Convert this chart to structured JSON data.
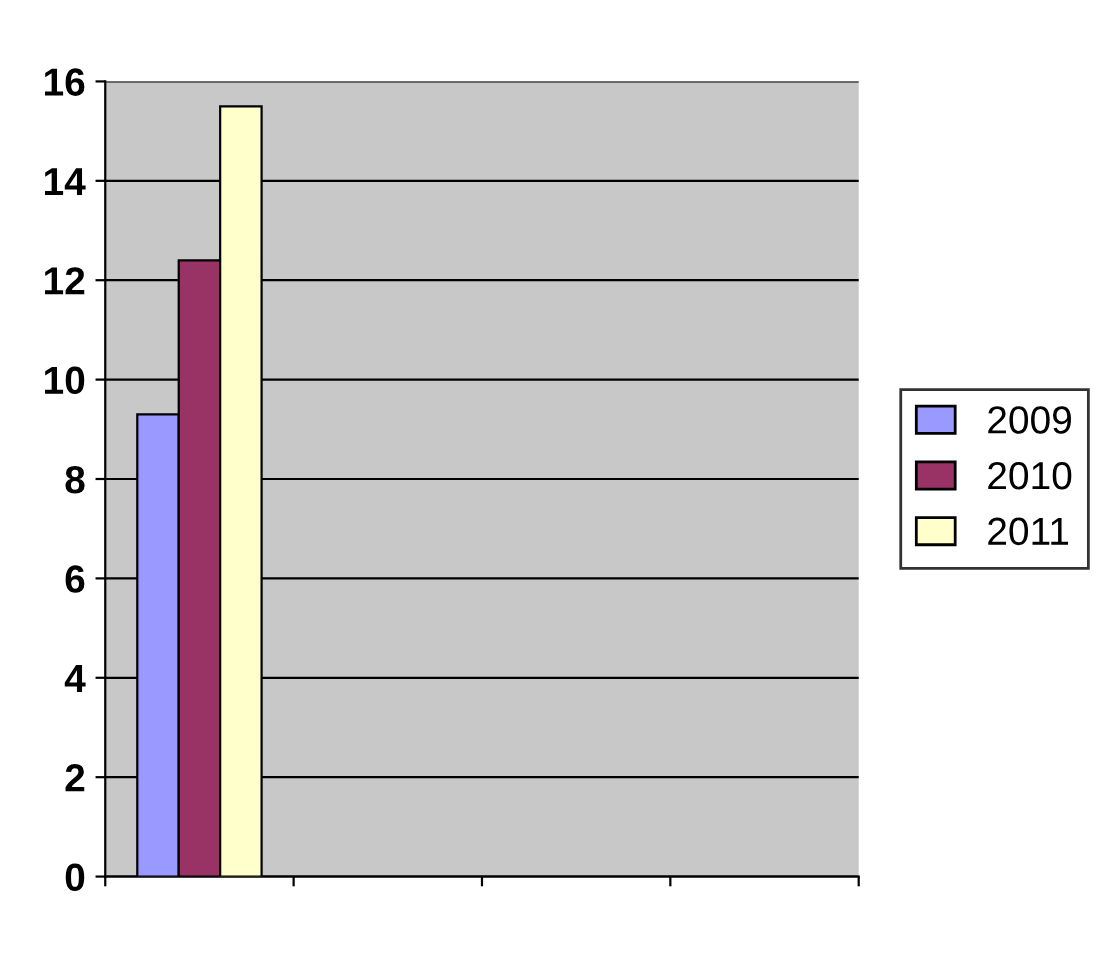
{
  "chart_data": {
    "type": "bar",
    "categories": [
      null,
      null,
      null,
      null
    ],
    "series": [
      {
        "name": "2009",
        "color": "#9999ff",
        "values": [
          9.3,
          null,
          null,
          null
        ]
      },
      {
        "name": "2010",
        "color": "#993366",
        "values": [
          12.4,
          null,
          null,
          null
        ]
      },
      {
        "name": "2011",
        "color": "#ffffcc",
        "values": [
          15.5,
          null,
          null,
          null
        ]
      }
    ],
    "ylim": [
      0,
      16
    ],
    "yticks": [
      0,
      2,
      4,
      6,
      8,
      10,
      12,
      14,
      16
    ],
    "grid": "y",
    "legend": "right",
    "tick_labels": "y"
  }
}
